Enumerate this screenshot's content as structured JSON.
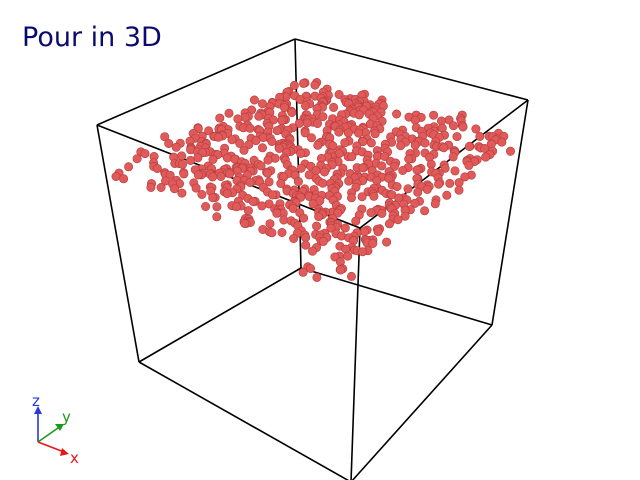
{
  "title": "Pour in 3D",
  "colors": {
    "title": "#0b0b6e",
    "particle": "#e05a5a",
    "particle_edge": "#b43c3c",
    "box": "#000000",
    "axis_x": "#e8161a",
    "axis_y": "#1a9a1a",
    "axis_z": "#2a3ad8"
  },
  "axes_triad": {
    "x_label": "x",
    "y_label": "y",
    "z_label": "z"
  }
}
